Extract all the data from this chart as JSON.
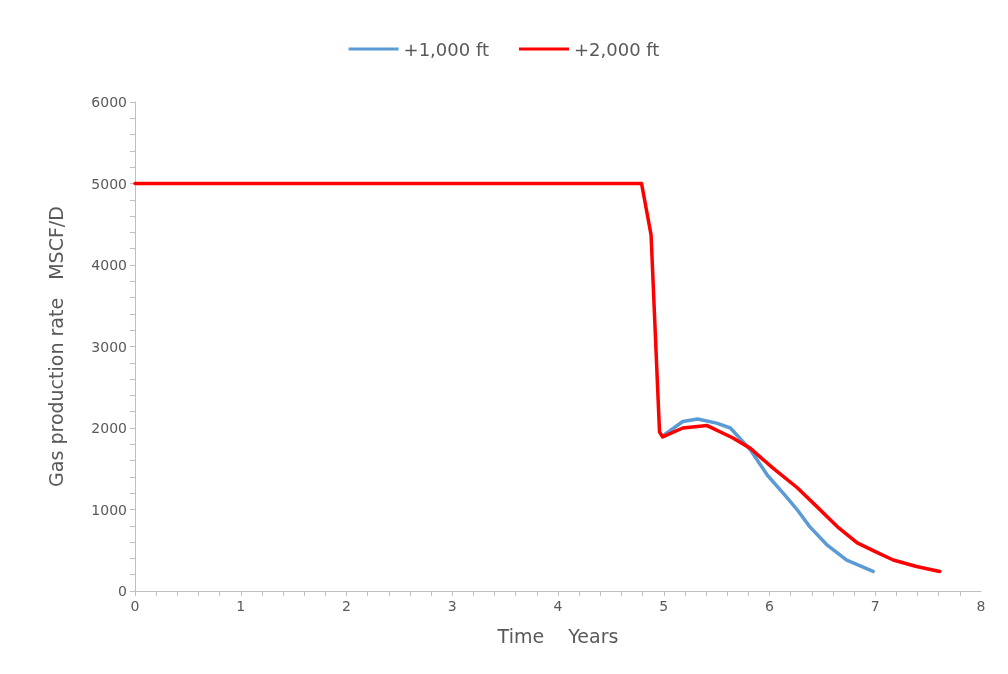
{
  "chart_data": {
    "type": "line",
    "xlabel": "Time    Years",
    "ylabel": "Gas production rate   MSCF/D",
    "xlim": [
      0,
      8
    ],
    "xticks": [
      0,
      1,
      2,
      3,
      4,
      5,
      6,
      7,
      8
    ],
    "ylim": [
      0,
      6000
    ],
    "yticks": [
      0,
      1000,
      2000,
      3000,
      4000,
      5000,
      6000
    ],
    "grid": false,
    "legend": "top",
    "marker": "none",
    "line_style": "solid",
    "series": [
      {
        "name": "+1,000 ft",
        "color": "#5b9bd5",
        "x": [
          5.01,
          5.18,
          5.32,
          5.5,
          5.63,
          5.82,
          5.98,
          6.17,
          6.26,
          6.38,
          6.54,
          6.73,
          6.98
        ],
        "values": [
          1920,
          2080,
          2110,
          2060,
          2000,
          1730,
          1420,
          1140,
          1000,
          790,
          570,
          380,
          240
        ]
      },
      {
        "name": "+2,000 ft",
        "color": "#ff0000",
        "x": [
          0,
          4.79,
          4.88,
          4.96,
          4.99,
          5.18,
          5.41,
          5.65,
          5.82,
          6.03,
          6.26,
          6.46,
          6.64,
          6.83,
          7.02,
          7.17,
          7.39,
          7.61
        ],
        "values": [
          5000,
          5000,
          4370,
          1950,
          1890,
          2000,
          2030,
          1880,
          1750,
          1510,
          1270,
          1020,
          790,
          590,
          470,
          380,
          300,
          240
        ]
      }
    ]
  }
}
